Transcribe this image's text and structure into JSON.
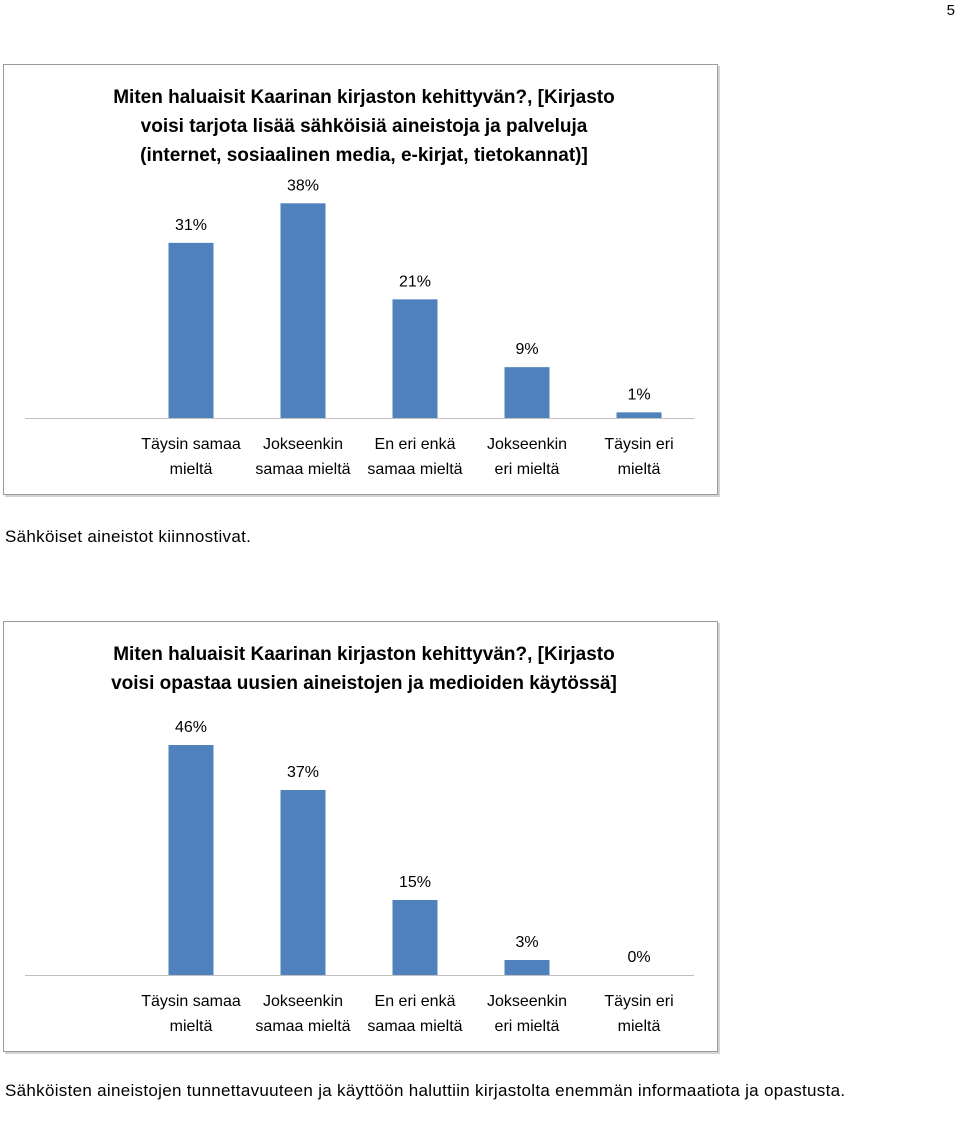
{
  "page_number": "5",
  "captions": {
    "first": "Sähköiset aineistot kiinnostivat.",
    "second": "Sähköisten aineistojen tunnettavuuteen ja käyttöön haluttiin kirjastolta enemmän informaatiota ja opastusta."
  },
  "colors": {
    "bar": "#4f81bd",
    "axis": "#bfbfbf"
  },
  "chart_data": [
    {
      "type": "bar",
      "title": "Miten haluaisit Kaarinan kirjaston kehittyvän?, [Kirjasto voisi tarjota lisää sähköisiä aineistoja ja palveluja (internet, sosiaalinen media, e-kirjat, tietokannat)]",
      "title_lines": [
        "Miten haluaisit Kaarinan kirjaston kehittyvän?, [Kirjasto",
        "voisi tarjota lisää sähköisiä aineistoja ja palveluja",
        "(internet, sosiaalinen media, e-kirjat, tietokannat)]"
      ],
      "categories": [
        "Täysin samaa mieltä",
        "Jokseenkin samaa mieltä",
        "En eri enkä samaa mieltä",
        "Jokseenkin eri mieltä",
        "Täysin eri mieltä"
      ],
      "category_lines": [
        [
          "Täysin samaa",
          "mieltä"
        ],
        [
          "Jokseenkin",
          "samaa mieltä"
        ],
        [
          "En eri enkä",
          "samaa mieltä"
        ],
        [
          "Jokseenkin",
          "eri mieltä"
        ],
        [
          "Täysin eri",
          "mieltä"
        ]
      ],
      "values": [
        31,
        38,
        21,
        9,
        1
      ],
      "data_labels": [
        "31%",
        "38%",
        "21%",
        "9%",
        "1%"
      ],
      "unit": "%",
      "grid": false,
      "legend": "none"
    },
    {
      "type": "bar",
      "title": "Miten haluaisit Kaarinan kirjaston kehittyvän?, [Kirjasto voisi opastaa uusien aineistojen ja medioiden käytössä]",
      "title_lines": [
        "Miten haluaisit Kaarinan kirjaston kehittyvän?, [Kirjasto",
        "voisi opastaa uusien aineistojen ja medioiden käytössä]"
      ],
      "categories": [
        "Täysin samaa mieltä",
        "Jokseenkin samaa mieltä",
        "En eri enkä samaa mieltä",
        "Jokseenkin eri mieltä",
        "Täysin eri mieltä"
      ],
      "category_lines": [
        [
          "Täysin samaa",
          "mieltä"
        ],
        [
          "Jokseenkin",
          "samaa mieltä"
        ],
        [
          "En eri enkä",
          "samaa mieltä"
        ],
        [
          "Jokseenkin",
          "eri mieltä"
        ],
        [
          "Täysin eri",
          "mieltä"
        ]
      ],
      "values": [
        46,
        37,
        15,
        3,
        0
      ],
      "data_labels": [
        "46%",
        "37%",
        "15%",
        "3%",
        "0%"
      ],
      "unit": "%",
      "grid": false,
      "legend": "none"
    }
  ]
}
